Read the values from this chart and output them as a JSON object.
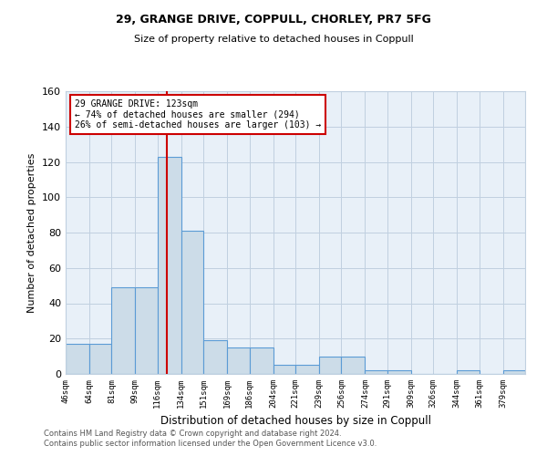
{
  "title1": "29, GRANGE DRIVE, COPPULL, CHORLEY, PR7 5FG",
  "title2": "Size of property relative to detached houses in Coppull",
  "xlabel": "Distribution of detached houses by size in Coppull",
  "ylabel": "Number of detached properties",
  "bin_edges": [
    46,
    64,
    81,
    99,
    116,
    134,
    151,
    169,
    186,
    204,
    221,
    239,
    256,
    274,
    291,
    309,
    326,
    344,
    361,
    379,
    396
  ],
  "bar_heights": [
    17,
    17,
    49,
    49,
    123,
    81,
    19,
    15,
    15,
    5,
    5,
    10,
    10,
    2,
    2,
    0,
    0,
    2,
    0,
    2
  ],
  "bar_color": "#ccdce8",
  "bar_edge_color": "#5b9bd5",
  "property_size": 123,
  "red_line_color": "#cc0000",
  "annotation_text": "29 GRANGE DRIVE: 123sqm\n← 74% of detached houses are smaller (294)\n26% of semi-detached houses are larger (103) →",
  "annotation_box_color": "#ffffff",
  "annotation_box_edge": "#cc0000",
  "ylim": [
    0,
    160
  ],
  "yticks": [
    0,
    20,
    40,
    60,
    80,
    100,
    120,
    140,
    160
  ],
  "grid_color": "#c0d0e0",
  "bg_color": "#e8f0f8",
  "footer1": "Contains HM Land Registry data © Crown copyright and database right 2024.",
  "footer2": "Contains public sector information licensed under the Open Government Licence v3.0."
}
